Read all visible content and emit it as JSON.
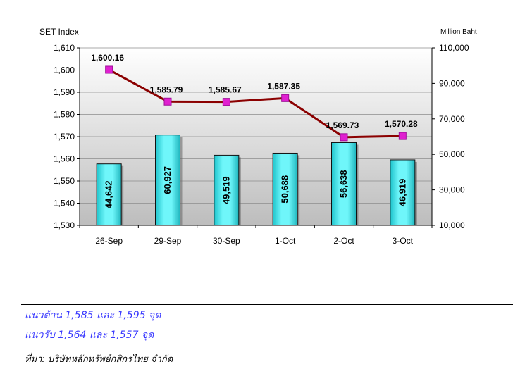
{
  "chart_data": {
    "type": "bar+line",
    "left_axis_title": "SET Index",
    "right_axis_title": "Million Baht",
    "categories": [
      "26-Sep",
      "29-Sep",
      "30-Sep",
      "1-Oct",
      "2-Oct",
      "3-Oct"
    ],
    "line": {
      "name": "SET Index",
      "axis": "left",
      "values": [
        1600.16,
        1585.79,
        1585.67,
        1587.35,
        1569.73,
        1570.28
      ],
      "labels": [
        "1,600.16",
        "1,585.79",
        "1,585.67",
        "1,587.35",
        "1,569.73",
        "1,570.28"
      ],
      "color": "#8b0000",
      "marker_color": "#e020d0"
    },
    "bars": {
      "name": "Value (Million Baht)",
      "axis": "right",
      "values": [
        44642,
        60927,
        49519,
        50688,
        56638,
        46919
      ],
      "labels": [
        "44,642",
        "60,927",
        "49,519",
        "50,688",
        "56,638",
        "46,919"
      ],
      "color": "#3fe8ec"
    },
    "left_axis": {
      "range": [
        1530,
        1610
      ],
      "ticks": [
        1610,
        1600,
        1590,
        1580,
        1570,
        1560,
        1550,
        1540,
        1530
      ],
      "tick_labels": [
        "1,610",
        "1,600",
        "1,590",
        "1,580",
        "1,570",
        "1,560",
        "1,550",
        "1,540",
        "1,530"
      ]
    },
    "right_axis": {
      "range": [
        10000,
        110000
      ],
      "ticks": [
        110000,
        90000,
        70000,
        50000,
        30000,
        10000
      ],
      "tick_labels": [
        "110,000",
        "90,000",
        "70,000",
        "50,000",
        "30,000",
        "10,000"
      ]
    },
    "grid": true
  },
  "notes": {
    "resistance": "แนวต้าน 1,585 และ 1,595 จุด",
    "support": "แนวรับ 1,564 และ 1,557 จุด",
    "source": "ที่มา: บริษัทหลักทรัพย์กสิกรไทย จำกัด"
  }
}
